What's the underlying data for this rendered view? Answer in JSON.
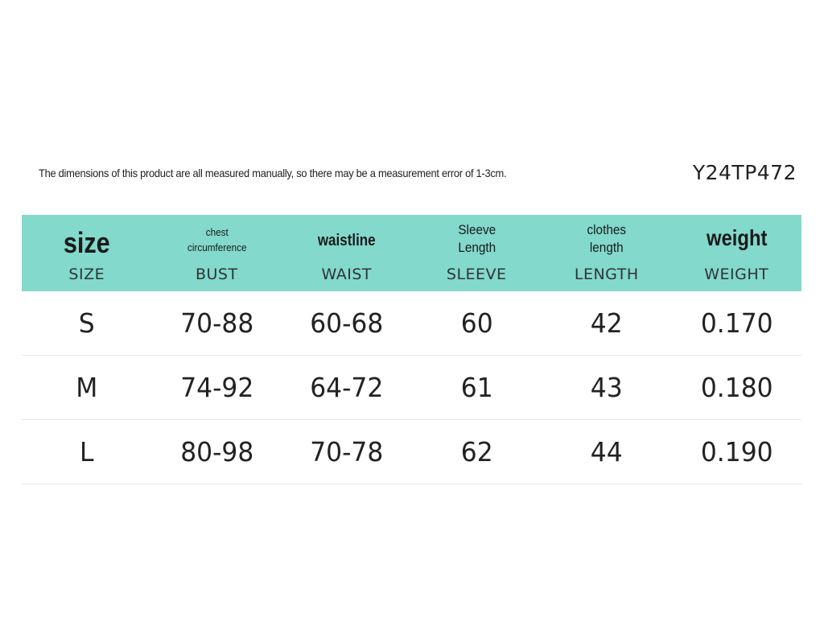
{
  "note": "The dimensions of this product are all measured manually, so there may be a measurement error of 1-3cm.",
  "product_code": "Y24TP472",
  "header": [
    {
      "top": [
        "size"
      ],
      "bottom": "SIZE"
    },
    {
      "top": [
        "chest",
        "circumference"
      ],
      "bottom": "BUST"
    },
    {
      "top": [
        "waistline"
      ],
      "bottom": "WAIST"
    },
    {
      "top": [
        "Sleeve",
        "Length"
      ],
      "bottom": "SLEEVE"
    },
    {
      "top": [
        "clothes",
        "length"
      ],
      "bottom": "LENGTH"
    },
    {
      "top": [
        "weight"
      ],
      "bottom": "WEIGHT"
    }
  ],
  "rows": [
    [
      "S",
      "70-88",
      "60-68",
      "60",
      "42",
      "0.170"
    ],
    [
      "M",
      "74-92",
      "64-72",
      "61",
      "43",
      "0.180"
    ],
    [
      "L",
      "80-98",
      "70-78",
      "62",
      "44",
      "0.190"
    ]
  ],
  "colors": {
    "header_background": "#82d9cc",
    "row_divider": "#e8e8e8"
  }
}
